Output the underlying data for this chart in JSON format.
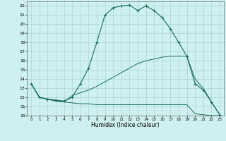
{
  "xlabel": "Humidex (Indice chaleur)",
  "bg_color": "#cff0f0",
  "grid_color": "#aad4d4",
  "line_color": "#1a6b5a",
  "xlim": [
    -0.5,
    23.5
  ],
  "ylim": [
    10,
    22.5
  ],
  "xticks": [
    0,
    1,
    2,
    3,
    4,
    5,
    6,
    7,
    8,
    9,
    10,
    11,
    12,
    13,
    14,
    15,
    16,
    17,
    18,
    19,
    20,
    21,
    22,
    23
  ],
  "yticks": [
    10,
    11,
    12,
    13,
    14,
    15,
    16,
    17,
    18,
    19,
    20,
    21,
    22
  ],
  "line1_x": [
    0,
    1,
    2,
    3,
    4,
    5,
    6,
    7,
    8,
    9,
    10,
    11,
    12,
    13,
    14,
    15,
    16,
    17,
    18,
    19,
    20,
    21,
    22,
    23
  ],
  "line1_y": [
    13.5,
    12.0,
    11.8,
    11.7,
    11.6,
    12.0,
    13.5,
    15.2,
    18.0,
    21.0,
    21.8,
    22.0,
    22.1,
    21.5,
    22.0,
    21.5,
    20.7,
    19.5,
    18.0,
    16.5,
    13.5,
    12.8,
    11.5,
    10.1
  ],
  "line2_x": [
    0,
    1,
    2,
    3,
    4,
    5,
    6,
    7,
    8,
    9,
    10,
    11,
    12,
    13,
    14,
    15,
    16,
    17,
    18,
    19,
    20,
    21,
    22,
    23
  ],
  "line2_y": [
    13.5,
    12.0,
    11.8,
    11.6,
    11.5,
    11.4,
    11.3,
    11.3,
    11.2,
    11.2,
    11.2,
    11.2,
    11.2,
    11.2,
    11.2,
    11.2,
    11.2,
    11.2,
    11.2,
    11.2,
    10.2,
    10.1,
    10.0,
    10.0
  ],
  "line3_x": [
    0,
    1,
    2,
    3,
    4,
    5,
    6,
    7,
    8,
    9,
    10,
    11,
    12,
    13,
    14,
    15,
    16,
    17,
    18,
    19,
    20,
    21,
    22,
    23
  ],
  "line3_y": [
    13.5,
    12.0,
    11.8,
    11.6,
    11.5,
    12.2,
    12.5,
    12.8,
    13.2,
    13.7,
    14.2,
    14.7,
    15.2,
    15.7,
    16.0,
    16.2,
    16.4,
    16.5,
    16.5,
    16.5,
    14.0,
    13.0,
    11.5,
    10.1
  ],
  "marker1_x": [
    0,
    1,
    2,
    3,
    4,
    5,
    6,
    7,
    8,
    9,
    10,
    11,
    12,
    13,
    14,
    15,
    16,
    17,
    18,
    19,
    20,
    21,
    22,
    23
  ],
  "marker1_y": [
    13.5,
    12.0,
    11.8,
    11.7,
    11.6,
    12.0,
    13.5,
    15.2,
    18.0,
    21.0,
    21.8,
    22.0,
    22.1,
    21.5,
    22.0,
    21.5,
    20.7,
    19.5,
    18.0,
    16.5,
    13.5,
    12.8,
    11.5,
    10.1
  ]
}
